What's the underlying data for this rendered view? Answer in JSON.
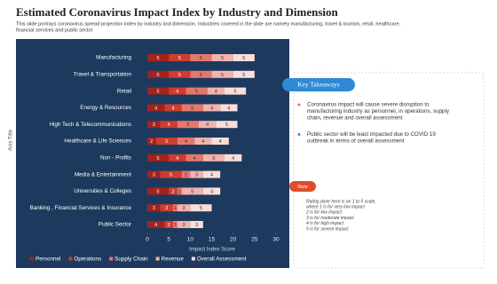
{
  "header": {
    "title": "Estimated Coronavirus Impact Index by Industry and Dimension",
    "subtitle": [
      "This slide portrays coronavirus spread projection index by industry and dimension. Industries covered in the slide are namely manufacturing, travel & tourism, retail, healthcare,",
      "financial services and public sector"
    ]
  },
  "chart_data": {
    "type": "stacked-bar-horizontal",
    "xlabel": "Impact Index Score",
    "ylabel": "Axis Title",
    "categories": [
      "Manufacturing",
      "Travel & Transportation",
      "Retail",
      "Energy & Resources",
      "High Tech & Telecommunications",
      "Healthcare & Life Sciences",
      "Non - Profits",
      "Media & Entertainment",
      "Universities & Colleges",
      "Banking , Financial Services & Insurance",
      "Public Sector"
    ],
    "series": [
      {
        "name": "Personnel",
        "color": "#a3231c",
        "values": [
          5,
          5,
          5,
          4,
          3,
          2,
          5,
          3,
          5,
          3,
          4
        ]
      },
      {
        "name": "Operations",
        "color": "#cf3d2f",
        "values": [
          5,
          5,
          4,
          4,
          4,
          5,
          4,
          5,
          2,
          3,
          2
        ]
      },
      {
        "name": "Supply Chain",
        "color": "#e4786d",
        "values": [
          5,
          5,
          5,
          5,
          5,
          4,
          4,
          2,
          1,
          1,
          1
        ]
      },
      {
        "name": "Revenue",
        "color": "#f2b3ac",
        "values": [
          5,
          5,
          4,
          4,
          4,
          4,
          5,
          3,
          5,
          3,
          3
        ]
      },
      {
        "name": "Overall Assessment",
        "color": "#f9dedb",
        "values": [
          5,
          5,
          5,
          4,
          5,
          4,
          4,
          4,
          4,
          5,
          3
        ]
      }
    ],
    "xlim": [
      0,
      30
    ],
    "xticks": [
      0,
      5,
      10,
      15,
      20,
      25,
      30
    ],
    "legend": "bottom"
  },
  "takeaways": {
    "title": "Key Takeaways",
    "bullets": [
      [
        "Coronavirus impact will cause severe disruption to",
        "manufacturing industry as personnel, in operations, supply",
        "chain, revenue and overall assessment"
      ],
      [
        "Public sector will be least impacted due to COVID 19",
        "outbreak in terms of overall assessment"
      ]
    ]
  },
  "note": {
    "title": "Note",
    "lines": [
      "Rating done here is on 1 to 5 scale,",
      "where  1 is for very low impact",
      "2 is for low impact",
      "3 is for moderate impact",
      "4 is for high impact",
      "5 is for severe impact"
    ]
  }
}
